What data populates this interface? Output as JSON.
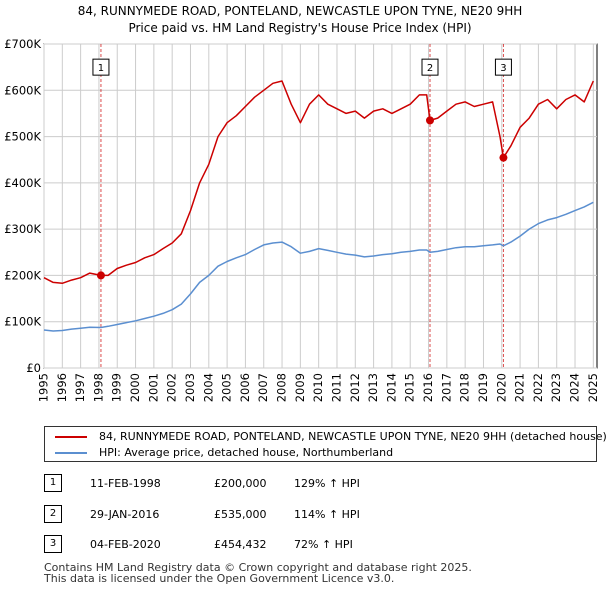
{
  "chart_data": {
    "type": "line",
    "title": "84, RUNNYMEDE ROAD, PONTELAND, NEWCASTLE UPON TYNE, NE20 9HH",
    "subtitle": "Price paid vs. HM Land Registry's House Price Index (HPI)",
    "xlim": [
      1995,
      2025.2
    ],
    "ylim": [
      0,
      700000
    ],
    "x_ticks": [
      "1995",
      "1996",
      "1997",
      "1998",
      "1999",
      "2000",
      "2001",
      "2002",
      "2003",
      "2004",
      "2005",
      "2006",
      "2007",
      "2008",
      "2009",
      "2010",
      "2011",
      "2012",
      "2013",
      "2014",
      "2015",
      "2016",
      "2017",
      "2018",
      "2019",
      "2020",
      "2021",
      "2022",
      "2023",
      "2024",
      "2025"
    ],
    "y_ticks": [
      {
        "value": 0,
        "label": "£0"
      },
      {
        "value": 100000,
        "label": "£100K"
      },
      {
        "value": 200000,
        "label": "£200K"
      },
      {
        "value": 300000,
        "label": "£300K"
      },
      {
        "value": 400000,
        "label": "£400K"
      },
      {
        "value": 500000,
        "label": "£500K"
      },
      {
        "value": 600000,
        "label": "£600K"
      },
      {
        "value": 700000,
        "label": "£700K"
      }
    ],
    "series": [
      {
        "name": "84, RUNNYMEDE ROAD, PONTELAND, NEWCASTLE UPON TYNE, NE20 9HH (detached house)",
        "color": "#cc0000",
        "x": [
          1995.0,
          1995.5,
          1996.0,
          1996.5,
          1997.0,
          1997.5,
          1998.11,
          1998.5,
          1999.0,
          1999.5,
          2000.0,
          2000.5,
          2001.0,
          2001.5,
          2002.0,
          2002.5,
          2003.0,
          2003.5,
          2004.0,
          2004.5,
          2005.0,
          2005.5,
          2006.0,
          2006.5,
          2007.0,
          2007.5,
          2008.0,
          2008.5,
          2009.0,
          2009.5,
          2010.0,
          2010.5,
          2011.0,
          2011.5,
          2012.0,
          2012.5,
          2013.0,
          2013.5,
          2014.0,
          2014.5,
          2015.0,
          2015.5,
          2015.9,
          2016.08,
          2016.5,
          2017.0,
          2017.5,
          2018.0,
          2018.5,
          2019.0,
          2019.5,
          2019.9,
          2020.09,
          2020.5,
          2021.0,
          2021.5,
          2022.0,
          2022.5,
          2023.0,
          2023.5,
          2024.0,
          2024.5,
          2025.0
        ],
        "values": [
          195000,
          185000,
          183000,
          190000,
          195000,
          205000,
          200000,
          200000,
          215000,
          222000,
          228000,
          238000,
          245000,
          258000,
          270000,
          290000,
          340000,
          400000,
          440000,
          500000,
          530000,
          545000,
          565000,
          585000,
          600000,
          615000,
          620000,
          570000,
          530000,
          570000,
          590000,
          570000,
          560000,
          550000,
          555000,
          540000,
          555000,
          560000,
          550000,
          560000,
          570000,
          590000,
          590000,
          535000,
          540000,
          555000,
          570000,
          575000,
          565000,
          570000,
          575000,
          500000,
          454432,
          480000,
          520000,
          540000,
          570000,
          580000,
          560000,
          580000,
          590000,
          575000,
          620000
        ]
      },
      {
        "name": "HPI: Average price, detached house, Northumberland",
        "color": "#5b8fd0",
        "x": [
          1995.0,
          1995.5,
          1996.0,
          1996.5,
          1997.0,
          1997.5,
          1998.11,
          1998.5,
          1999.0,
          1999.5,
          2000.0,
          2000.5,
          2001.0,
          2001.5,
          2002.0,
          2002.5,
          2003.0,
          2003.5,
          2004.0,
          2004.5,
          2005.0,
          2005.5,
          2006.0,
          2006.5,
          2007.0,
          2007.5,
          2008.0,
          2008.5,
          2009.0,
          2009.5,
          2010.0,
          2010.5,
          2011.0,
          2011.5,
          2012.0,
          2012.5,
          2013.0,
          2013.5,
          2014.0,
          2014.5,
          2015.0,
          2015.5,
          2015.9,
          2016.08,
          2016.5,
          2017.0,
          2017.5,
          2018.0,
          2018.5,
          2019.0,
          2019.5,
          2019.9,
          2020.09,
          2020.5,
          2021.0,
          2021.5,
          2022.0,
          2022.5,
          2023.0,
          2023.5,
          2024.0,
          2024.5,
          2025.0
        ],
        "values": [
          82000,
          80000,
          81000,
          84000,
          86000,
          88000,
          87500,
          90000,
          94000,
          98000,
          102000,
          107000,
          112000,
          118000,
          126000,
          138000,
          160000,
          185000,
          200000,
          220000,
          230000,
          238000,
          245000,
          256000,
          266000,
          270000,
          272000,
          262000,
          248000,
          252000,
          258000,
          254000,
          250000,
          246000,
          244000,
          240000,
          242000,
          245000,
          247000,
          250000,
          252000,
          255000,
          255000,
          250000,
          252000,
          256000,
          260000,
          262000,
          262000,
          264000,
          266000,
          268000,
          264000,
          272000,
          285000,
          300000,
          312000,
          320000,
          325000,
          332000,
          340000,
          348000,
          358000
        ]
      }
    ],
    "sales": [
      {
        "marker": "1",
        "x": 1998.11,
        "price": 200000,
        "date": "11-FEB-1998",
        "price_label": "£200,000",
        "hpi_label": "129% ↑ HPI"
      },
      {
        "marker": "2",
        "x": 2016.08,
        "price": 535000,
        "date": "29-JAN-2016",
        "price_label": "£535,000",
        "hpi_label": "114% ↑ HPI"
      },
      {
        "marker": "3",
        "x": 2020.09,
        "price": 454432,
        "date": "04-FEB-2020",
        "price_label": "£454,432",
        "hpi_label": "72% ↑ HPI"
      }
    ],
    "marker_label_value": 650000,
    "grid": true
  },
  "legend": {
    "property_label": "84, RUNNYMEDE ROAD, PONTELAND, NEWCASTLE UPON TYNE, NE20 9HH (detached house)",
    "hpi_label": "HPI: Average price, detached house, Northumberland"
  },
  "footer": {
    "line1": "Contains HM Land Registry data © Crown copyright and database right 2025.",
    "line2": "This data is licensed under the Open Government Licence v3.0."
  }
}
